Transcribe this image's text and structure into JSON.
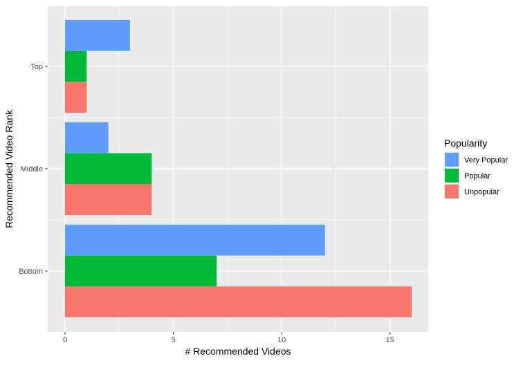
{
  "chart_data": {
    "type": "bar",
    "orientation": "horizontal",
    "categories": [
      "Bottom",
      "Middle",
      "Top"
    ],
    "series": [
      {
        "name": "Unpopular",
        "color": "#F8766D",
        "values": [
          16,
          4,
          1
        ]
      },
      {
        "name": "Popular",
        "color": "#00BA38",
        "values": [
          7,
          4,
          1
        ]
      },
      {
        "name": "Very Popular",
        "color": "#619CFF",
        "values": [
          12,
          2,
          3
        ]
      }
    ],
    "xlabel": "# Recommended Videos",
    "ylabel": "Recommended Video Rank",
    "xlim": [
      0,
      16.8
    ],
    "x_ticks": [
      0,
      5,
      10,
      15
    ],
    "grid": true,
    "legend": {
      "title": "Popularity",
      "placement": "right",
      "items": [
        "Very Popular",
        "Popular",
        "Unpopular"
      ]
    },
    "colors": {
      "panel_background": "#EBEBEB",
      "grid_major": "#FFFFFF",
      "tick_label": "#4D4D4D"
    }
  }
}
